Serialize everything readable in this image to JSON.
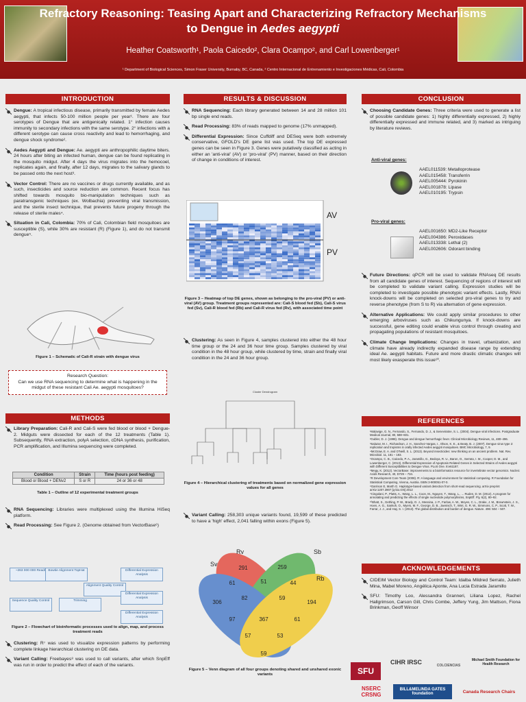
{
  "header": {
    "title_line1": "Refractory Reasoning: Teasing Apart and Characterizing Refractory Mechanisms",
    "title_line2": "to Dengue in",
    "title_species": "Aedes aegypti",
    "authors": "Heather Coatsworth¹, Paola Caicedo², Clara Ocampo², and Carl Lowenberger¹",
    "affiliations": "¹ Department of Biological Sciences, Simon Fraser University, Burnaby, BC, Canada, ² Centro Internacional de Entrenamiento e Investigaciones Médicas, Cali, Colombia"
  },
  "introduction": {
    "heading": "INTRODUCTION",
    "paragraphs": [
      {
        "lead": "Dengue:",
        "text": " A tropical infectious disease, primarily transmitted by female Aedes aegypti, that infects 50-100 million people per year¹. There are four serotypes of Dengue that are antigenically related. 1° infection causes immunity to secondary infections with the same serotype. 2° infections with a different serotype can cause cross reactivity and lead to hemorrhaging, and dengue shock syndrome²."
      },
      {
        "lead": "Aedes Aegypti and Dengue:",
        "text": " Ae. aegypti are anthropophilic daytime biters. 24 hours after biting an infected human, dengue can be found replicating in the mosquito midgut. After 4 days the virus migrates into the hemocoel, replicates again, and finally, after 12 days, migrates to the salivary glands to be passed onto the next host³."
      },
      {
        "lead": "Vector Control:",
        "text": " There are no vaccines or drugs currently available, and as such, insecticides and source reduction are common. Recent focus has shifted towards mosquito bio-manipulation techniques such as paratransgenic techniques (ex. Wolbachia) preventing viral transmission, and the sterile insect technique, that prevents future progeny through the release of sterile males⁴."
      },
      {
        "lead": "Situation in Cali, Colombia:",
        "text": " 70% of Cali, Colombian field mosquitoes are susceptible (S), while 30% are resistant (R) (Figure 1), and do not transmit dengue⁵."
      }
    ],
    "figure_caption": "Figure 1 – Schematic of Cali-R strain with dengue virus",
    "question_label": "Research Question:",
    "question": "Can we use RNA sequencing to determine what is happening in the midgut of these resistant Cali Ae. aegypti mosquitoes?"
  },
  "methods": {
    "heading": "METHODS",
    "paragraphs_a": [
      {
        "lead": "Library Preparation:",
        "text": " Cali-R and Cali-S were fed blood or blood + Dengue-2. Midguts were dissected for each of the 12 treatments (Table 1). Subsequently, RNA extraction, polyA selection, cDNA synthesis, purification, PCR amplification, and Illumina sequencing were completed."
      }
    ],
    "table": {
      "headers": [
        "Condition",
        "Strain",
        "Time (hours post feeding)"
      ],
      "rows": [
        [
          "Blood or Blood + DENv2",
          "S or R",
          "24 or 36 or 48"
        ]
      ]
    },
    "table_caption": "Table 1 – Outline of 12 experimental treatment groups",
    "paragraphs_b": [
      {
        "lead": "RNA Sequencing:",
        "text": " Libraries were multiplexed using the Illumina HiSeq platform."
      },
      {
        "lead": "Read Processing:",
        "text": " See Figure 2. (Genome obtained from VectorBase⁶)"
      }
    ],
    "flowchart": [
      "~263 000 000 Reads",
      "Bowtie Alignment TopHat",
      "Differential Expression Analysis",
      "Sequence Quality Control",
      "Trimming",
      "Alignment Quality Control",
      "Differential Expression Analysis",
      "Differential Expression Analysis"
    ],
    "figure_caption": "Figure 2 – Flowchart of bioinformatic processes used to align, map, and process treatment reads",
    "paragraphs_c": [
      {
        "lead": "Clustering:",
        "text": " R⁷ was used to visualize expression patterns by performing complete linkage hierarchical clustering on DE data."
      },
      {
        "lead": "Variant Calling:",
        "text": " Freebayes⁸ was used to call variants, after which SnpEff was run in order to predict the effect of each of the variants."
      }
    ]
  },
  "results": {
    "heading": "RESULTS & DISCUSSION",
    "paragraphs_a": [
      {
        "lead": "RNA Sequencing:",
        "text": " Each library generated between 14 and 28 million 101 bp single end reads."
      },
      {
        "lead": "Read Processing:",
        "text": " 83% of reads mapped to genome (17% unmapped)."
      },
      {
        "lead": "Differential Expression:",
        "text": " Since Cuffdiff and DESeq were both extremely conservative, GFOLD's DE gene list was used. The top DE expressed genes can be seen in Figure 3. Genes were putatively classified as acting in either an 'anti-viral' (AV) or 'pro-viral' (PV) manner, based on their direction of change in conditions of interest."
      }
    ],
    "heatmap_labels": [
      "AV",
      "PV"
    ],
    "figure3_caption": "Figure 3 – Heatmap of top DE genes, shown as belonging to the pro-viral (PV) or anti-viral (AV) group. Treatment groups represented are: Cali-S blood fed (Sb), Cali-S virus fed (Sv), Cali-R blood fed (Rb) and Cali-R virus fed (Rv), with associated time point",
    "paragraphs_b": [
      {
        "lead": "Clustering:",
        "text": " As seen in Figure 4, samples clustered into either the 48 hour time group or the 24 and 36 hour time group. Samples clustered by viral condition in the 48 hour group, while clustered by time, strain and finally viral condition in the 24 and 36 hour group."
      }
    ],
    "dendrogram_title": "Cluster Dendrogram",
    "figure4_caption": "Figure 4 – Hierarchical clustering of treatments based on normalized gene expression values for all genes",
    "paragraphs_c": [
      {
        "lead": "Variant Calling:",
        "text": " 258,303 unique variants found, 19,599 of these predicted to have a 'high' effect, 2,041 falling within exons (Figure 5)."
      }
    ],
    "venn": {
      "sets": [
        "Rv",
        "Sb",
        "Sv",
        "Rb"
      ],
      "counts": [
        "291",
        "259",
        "306",
        "194",
        "61",
        "51",
        "44",
        "82",
        "59",
        "367",
        "97",
        "61",
        "57",
        "53",
        "59"
      ]
    },
    "figure5_caption": "Figure 5 – Venn diagram of all four groups denoting shared and unshared exonic variants"
  },
  "conclusion": {
    "heading": "CONCLUSION",
    "paragraphs_a": [
      {
        "lead": "Choosing Candidate Genes:",
        "text": " Three criteria were used to generate a list of possible candidate genes: 1) highly differentially expressed, 2) highly differentially expressed and immune related, and 3) marked as intriguing by literature reviews."
      }
    ],
    "anti_viral": {
      "label": "Anti-viral genes:",
      "genes": [
        "AAEL011539: Metalloprotease",
        "AAEL015458: Transferrin",
        "AAEL005444: Pyrokinin",
        "AAEL001878: Lipase",
        "AAEL010195: Trypsin"
      ]
    },
    "pro_viral": {
      "label": "Pro-viral genes:",
      "genes": [
        "AAEL001650: MD2-Like Receptor",
        "AAEL004386: Peroxidases",
        "AAEL013338: Lethal (2)",
        "AAEL002606: Odorant binding"
      ]
    },
    "paragraphs_b": [
      {
        "lead": "Future Directions:",
        "text": " qPCR will be used to validate RNAseq DE results from all candidate genes of interest. Sequencing of regions of interest will be completed to validate variant calling. Expression studies will be completed to investigate possible phenotypic variant effects. Lastly, RNAi knock-downs will be completed on selected pro-viral genes to try and reverse phenotype (from S to R) via alternation of gene expression."
      },
      {
        "lead": "Alternative Applications:",
        "text": " We could apply similar procedures to other emerging arboviruses such as Chikungunya. If knock-downs are successful, gene editing could enable virus control through creating and propagating populations of resistant mosquitoes."
      },
      {
        "lead": "Climate Change Implications:",
        "text": " Changes in travel, urbanization, and climate have already indirectly expanded disease range by extending ideal Ae. aegypti habitats. Future and more drastic climatic changes will most likely exasperate this issue¹⁰."
      }
    ]
  },
  "references": {
    "heading": "REFERENCES",
    "items": [
      "¹Malavige, G. N., Fernando, S., Fernando, D. J., & Seneviratne, S. L. (2004). Dengue viral infections. Postgraduate Medical Journal, 80, 588–601.",
      "²Gubler, D. J. (1998). Dengue and dengue hemorrhagic fever. Clinical Microbiology Reviews, 11, 480–496.",
      "³Salazar, M. I., Richardson, J. H., Sanchez-Vargas, I., Olson, K. E., & Beaty, B. J. (2007). Dengue virus type 2: replication and tropisms in orally infected Aedes aegypti mosquitoes. BMC Microbiology, 7, 9.",
      "⁴McGraw, E. A. and O'Neill, S. L. (2013). Beyond insecticides: new thinking on an ancient problem. Nat. Rev. Microbiol. 11, 181 – 193.",
      "⁵Ocampo, C. B., Caicedo, P. A., Jaramillo, G., Bedoya, R. U., Baron, O., Serrato, I. M., Cooper, D. M., and Lowenberger, C. (2013). Differential Expression of Apoptosis Related Genes in Selected Strains of Aedes aegypti with Different Susceptibilities to Dengue Virus. PLoS One. 8:e61187.",
      "⁶Megy, K. (2012). VectorBase: improvements to a bioinformatics resource for invertebrate vector genomics. Nucleic Acids Research, 40, D729 – 734.",
      "⁷R Development Core Team (2008). R: A language and environment for statistical computing. R Foundation for Statistical Computing, Vienna, Austria. ISBN 3-900051-07-0.",
      "⁸Garrison E, Marth G. Haplotype-based variant detection from short-read sequencing. arXiv preprint arXiv:1207.3907 [q-bio.GN] 2012",
      "⁹Cingolani, P., Platts, A., Wang, L. L., Coon, M., Nguyen, T., Wang, L., ... Ruden, D. M. (2012). A program for annotating and predicting the effects of single nucleotide polymorphisms, SnpEff. Fly, 6(2), 80–92.",
      "¹⁰Bhatt, S., Gething, P. W., Brady, O. J., Messina, J. P., Farlow, A. W., Moyes, C. L., Drake, J. M., Brownstein, J. S., Hoen, A. G., Sankoh, O., Myers, M. F., George, D. B., Jaenisch, T., Wint, G. R. W., Simmons, C. P., Scott, T. W., Farrar, J. J., and Hay, S. I. (2013). The global distribution and burden of dengue. Nature. 496: 504 – 507."
    ]
  },
  "acknowledgements": {
    "heading": "ACKNOWLEDGEMENTS",
    "paragraphs": [
      {
        "lead": "",
        "text": "CIDEIM Vector Biology and Control Team: Idalba Mildred Serrato, Julieth Mina, Mabel Moreno, Angélica Aponte, Ana Lucia Estrada Jaramillo"
      },
      {
        "lead": "",
        "text": "SFU: Timothy Loo, Alessandra Granneri, Liliana Lopez, Rachel Hallgrimson, Carson Gill, Chris Combe, Jeffery Yung, Jim Mattson, Fiona Brinkman, Geoff Winsor"
      }
    ],
    "logos": [
      "SFU",
      "CIHR IRSC",
      "COLCIENCIAS",
      "Michael Smith Foundation for Health Research",
      "NSERC CRSNG",
      "BILL&MELINDA GATES foundation",
      "Canada Research Chairs"
    ]
  }
}
